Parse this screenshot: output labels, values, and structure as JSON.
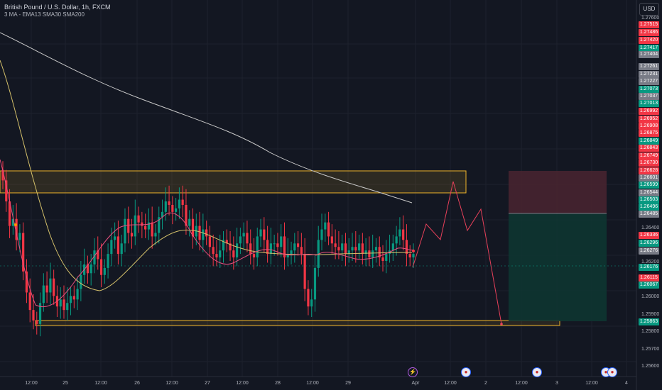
{
  "header": {
    "symbol_title": "British Pound / U.S. Dollar, 1h, FXCM",
    "indicator_label": "3 MA - EMA13 SMA30 SMA200",
    "currency": "USD"
  },
  "price_scale_ticks": [
    "1.27600",
    "1.26400",
    "1.26200",
    "1.26000",
    "1.25900",
    "1.25800",
    "1.25700",
    "1.25600"
  ],
  "price_labels": [
    {
      "text": "1.27515",
      "color": "#f23645"
    },
    {
      "text": "1.27486",
      "color": "#f23645"
    },
    {
      "text": "1.27420",
      "color": "#f23645"
    },
    {
      "text": "1.27417",
      "color": "#089981"
    },
    {
      "text": "1.27404",
      "color": "#787b86"
    },
    {
      "text": "1.27261",
      "color": "#787b86"
    },
    {
      "text": "1.27231",
      "color": "#787b86"
    },
    {
      "text": "1.27227",
      "color": "#787b86"
    },
    {
      "text": "1.27073",
      "color": "#089981"
    },
    {
      "text": "1.27037",
      "color": "#787b86"
    },
    {
      "text": "1.27013",
      "color": "#089981"
    },
    {
      "text": "1.26992",
      "color": "#f23645"
    },
    {
      "text": "1.26952",
      "color": "#f23645"
    },
    {
      "text": "1.26908",
      "color": "#f23645"
    },
    {
      "text": "1.26875",
      "color": "#f23645"
    },
    {
      "text": "1.26849",
      "color": "#089981"
    },
    {
      "text": "1.26843",
      "color": "#f23645"
    },
    {
      "text": "1.26749",
      "color": "#f23645"
    },
    {
      "text": "1.26730",
      "color": "#f23645"
    },
    {
      "text": "1.26628",
      "color": "#f23645"
    },
    {
      "text": "1.26601",
      "color": "#787b86"
    },
    {
      "text": "1.26599",
      "color": "#089981"
    },
    {
      "text": "1.26544",
      "color": "#787b86"
    },
    {
      "text": "1.26503",
      "color": "#089981"
    },
    {
      "text": "1.26496",
      "color": "#089981"
    },
    {
      "text": "1.26485",
      "color": "#787b86"
    },
    {
      "text": "1.26336",
      "color": "#f23645"
    },
    {
      "text": "1.26296",
      "color": "#089981"
    },
    {
      "text": "1.26276",
      "color": "#787b86"
    },
    {
      "text": "1.26176",
      "color": "#089981"
    },
    {
      "text": "1.26115",
      "color": "#f23645"
    },
    {
      "text": "1.26067",
      "color": "#089981"
    },
    {
      "text": "1.25863",
      "color": "#089981"
    }
  ],
  "time_axis": [
    "12:00",
    "25",
    "12:00",
    "26",
    "12:00",
    "27",
    "12:00",
    "28",
    "12:00",
    "29",
    "Apr",
    "12:00",
    "2",
    "12:00",
    "3",
    "12:00",
    "4"
  ],
  "events": [
    {
      "icon": "lightning-icon",
      "glyph": "⚡"
    },
    {
      "icon": "us-flag-icon",
      "glyph": "●"
    },
    {
      "icon": "us-flag-icon",
      "glyph": "●"
    },
    {
      "icon": "us-flag-icon",
      "glyph": "●"
    },
    {
      "icon": "us-flag-icon",
      "glyph": "●"
    }
  ],
  "colors": {
    "background": "#131722",
    "up": "#089981",
    "down": "#f23645",
    "ema13": "#f06292",
    "sma30": "#d4c06a",
    "sma200": "#c9c9c9",
    "zone": "#f0b429",
    "projection": "#f23645",
    "stop_zone": "#5a2a33",
    "target_zone": "#0f3d38"
  },
  "chart_data": {
    "type": "candlestick",
    "symbol": "GBPUSD",
    "timeframe": "1h",
    "ylim": [
      1.255,
      1.2765
    ],
    "x_categories": [
      "12:00",
      "25",
      "12:00",
      "26",
      "12:00",
      "27",
      "12:00",
      "28",
      "12:00",
      "29",
      "Apr",
      "12:00",
      "2",
      "12:00",
      "3",
      "12:00",
      "4"
    ],
    "candles_close": [
      1.2662,
      1.265,
      1.2636,
      1.264,
      1.2628,
      1.2632,
      1.261,
      1.2598,
      1.2588,
      1.2582,
      1.258,
      1.2592,
      1.2602,
      1.2598,
      1.2606,
      1.2596,
      1.259,
      1.2594,
      1.2588,
      1.2592,
      1.2596,
      1.2594,
      1.26,
      1.2608,
      1.2614,
      1.2609,
      1.2614,
      1.2622,
      1.2617,
      1.2608,
      1.2612,
      1.262,
      1.2628,
      1.263,
      1.262,
      1.2626,
      1.264,
      1.2632,
      1.263,
      1.2642,
      1.2638,
      1.2636,
      1.2634,
      1.2638,
      1.263,
      1.2632,
      1.2641,
      1.2644,
      1.265,
      1.2648,
      1.2644,
      1.2646,
      1.2651,
      1.2648,
      1.2636,
      1.264,
      1.263,
      1.2636,
      1.2628,
      1.2634,
      1.263,
      1.2624,
      1.262,
      1.2618,
      1.2622,
      1.2628,
      1.2626,
      1.2622,
      1.2618,
      1.2626,
      1.263,
      1.2632,
      1.2626,
      1.262,
      1.2618,
      1.263,
      1.2634,
      1.2628,
      1.262,
      1.2626,
      1.2626,
      1.2624,
      1.263,
      1.2618,
      1.262,
      1.2622,
      1.2626,
      1.2624,
      1.262,
      1.26,
      1.259,
      1.2594,
      1.2612,
      1.2628,
      1.2634,
      1.2638,
      1.263,
      1.2626,
      1.2624,
      1.2622,
      1.2626,
      1.262,
      1.2622,
      1.2624,
      1.2622,
      1.2626,
      1.262,
      1.2622,
      1.2618,
      1.2622,
      1.2624,
      1.2618,
      1.2616,
      1.262,
      1.2622,
      1.2626,
      1.263,
      1.2634,
      1.2628,
      1.262,
      1.2618,
      1.262
    ],
    "zones": [
      {
        "name": "resistance",
        "from": 1.26544,
        "to": 1.26628
      },
      {
        "name": "support",
        "from": 1.2585,
        "to": 1.2587
      }
    ],
    "projection_path": [
      1.2618,
      1.2635,
      1.2628,
      1.2662,
      1.263,
      1.2647,
      1.2587
    ],
    "position": {
      "entry": 1.26485,
      "stop": 1.26628,
      "target": 1.25863
    }
  }
}
